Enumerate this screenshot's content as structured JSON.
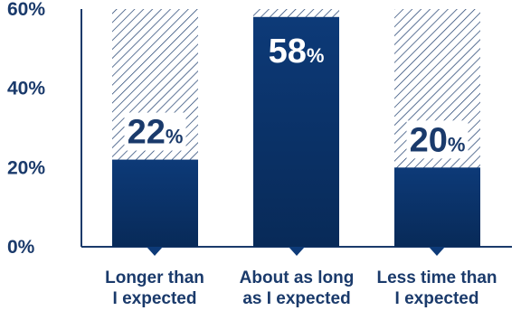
{
  "chart_data": {
    "type": "bar",
    "categories": [
      "Longer than I expected",
      "About as long as I expected",
      "Less time than I expected"
    ],
    "category_lines": [
      [
        "Longer than",
        "I expected"
      ],
      [
        "About as long",
        "as I expected"
      ],
      [
        "Less time than",
        "I expected"
      ]
    ],
    "values": [
      22,
      58,
      20
    ],
    "data_labels": [
      {
        "number": "22",
        "unit": "%"
      },
      {
        "number": "58",
        "unit": "%"
      },
      {
        "number": "20",
        "unit": "%"
      }
    ],
    "ylim": [
      0,
      60
    ],
    "yticks": [
      0,
      20,
      40,
      60
    ],
    "ytick_labels": [
      "0%",
      "20%",
      "40%",
      "60%"
    ],
    "background_fill": "hatched to 100%",
    "grid": false,
    "title": "",
    "xlabel": "",
    "ylabel": "",
    "colors": {
      "bar": "#0d3a78",
      "bar_dark": "#082a58",
      "hatch": "#1a3a6b",
      "axis": "#1a3a6b",
      "text": "#1a3a6b",
      "label_on_bar": "#ffffff"
    }
  }
}
